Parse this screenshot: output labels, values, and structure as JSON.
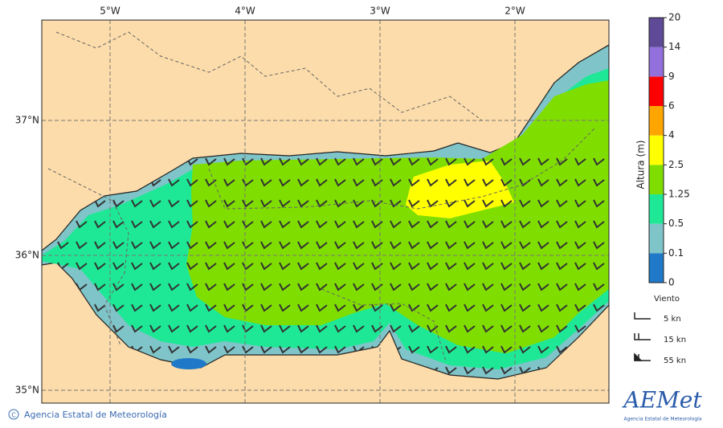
{
  "map": {
    "lon_labels": [
      "5°W",
      "4°W",
      "3°W",
      "2°W"
    ],
    "lat_labels": [
      "37°N",
      "36°N",
      "35°N"
    ],
    "land_color": "#fcdcaa"
  },
  "colorbar": {
    "title": "Altura (m)",
    "levels": [
      0,
      0.1,
      0.5,
      1.25,
      2.5,
      4,
      6,
      9,
      14,
      20
    ],
    "colors": [
      "#1f78c8",
      "#7ec4c8",
      "#1ee896",
      "#80dd00",
      "#ffff00",
      "#ffa500",
      "#ff0000",
      "#9370db",
      "#5e4a96"
    ]
  },
  "legend": {
    "title": "Viento",
    "items": [
      "5 kn",
      "15 kn",
      "55 kn"
    ]
  },
  "footer": {
    "copyright": "Agencia Estatal de Meteorología"
  },
  "logo": {
    "name": "AEMet",
    "subtitle": "Agencia Estatal de Meteorología"
  }
}
